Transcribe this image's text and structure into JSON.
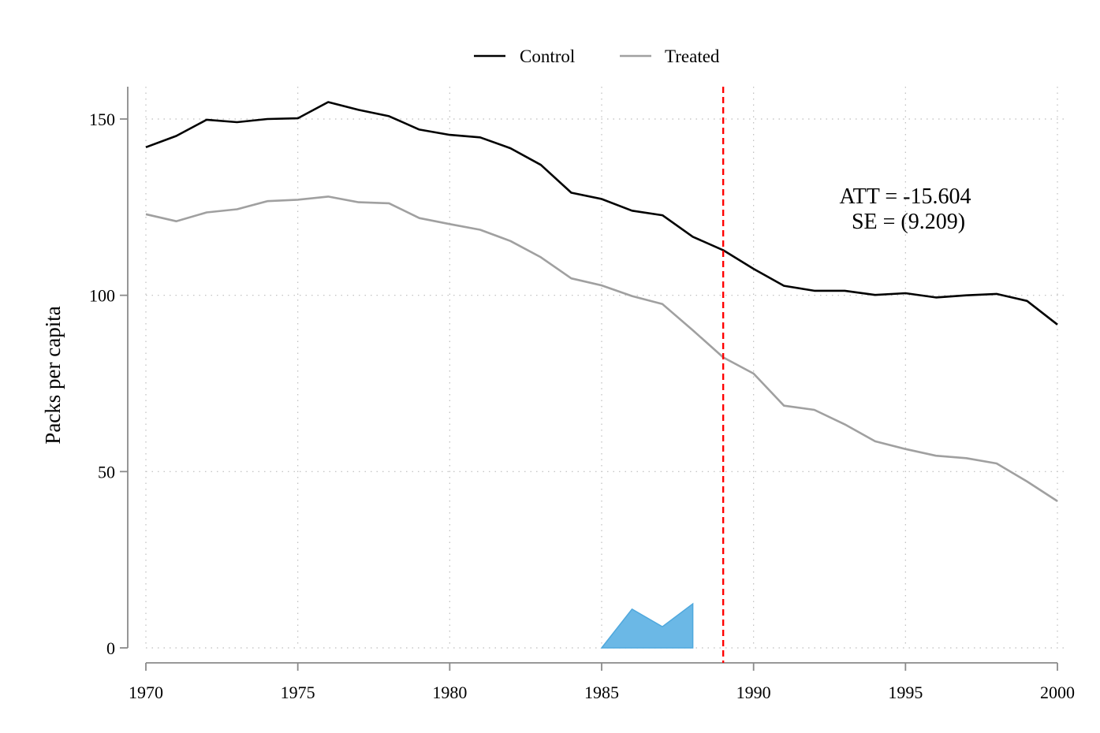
{
  "chart_data": {
    "type": "line",
    "title": "",
    "xlabel": "",
    "ylabel": "Packs per capita",
    "xlim": [
      1970,
      2000
    ],
    "ylim": [
      0,
      150
    ],
    "x_ticks": [
      1970,
      1975,
      1980,
      1985,
      1990,
      1995,
      2000
    ],
    "y_ticks": [
      0,
      50,
      100,
      150
    ],
    "grid": true,
    "legend_position": "top-center",
    "x": [
      1970,
      1971,
      1972,
      1973,
      1974,
      1975,
      1976,
      1977,
      1978,
      1979,
      1980,
      1981,
      1982,
      1983,
      1984,
      1985,
      1986,
      1987,
      1988,
      1989,
      1990,
      1991,
      1992,
      1993,
      1994,
      1995,
      1996,
      1997,
      1998,
      1999,
      2000
    ],
    "series": [
      {
        "name": "Control",
        "color": "#000000",
        "values": [
          142.0,
          145.2,
          149.8,
          149.1,
          150.0,
          150.2,
          154.8,
          152.6,
          150.8,
          147.0,
          145.5,
          144.8,
          141.7,
          137.0,
          129.1,
          127.3,
          124.0,
          122.7,
          116.6,
          112.8,
          107.5,
          102.7,
          101.3,
          101.3,
          100.1,
          100.6,
          99.4,
          100.0,
          100.4,
          98.4,
          91.7
        ]
      },
      {
        "name": "Treated",
        "color": "#a0a0a0",
        "values": [
          123.0,
          121.0,
          123.5,
          124.4,
          126.7,
          127.1,
          128.0,
          126.4,
          126.1,
          121.9,
          120.2,
          118.6,
          115.4,
          110.8,
          104.8,
          102.8,
          99.8,
          97.5,
          90.1,
          82.4,
          77.8,
          68.7,
          67.5,
          63.4,
          58.6,
          56.4,
          54.5,
          53.8,
          52.3,
          47.2,
          41.6
        ]
      }
    ],
    "area_series": {
      "color": "#6bb8e6",
      "x": [
        1985,
        1986,
        1987,
        1988
      ],
      "values": [
        0,
        11.0,
        6.0,
        12.5
      ]
    },
    "vline": {
      "x": 1989,
      "color": "#ff0000",
      "style": "dashed"
    },
    "annotation": {
      "line1": "ATT = -15.604",
      "line2": "SE = (9.209)"
    }
  }
}
